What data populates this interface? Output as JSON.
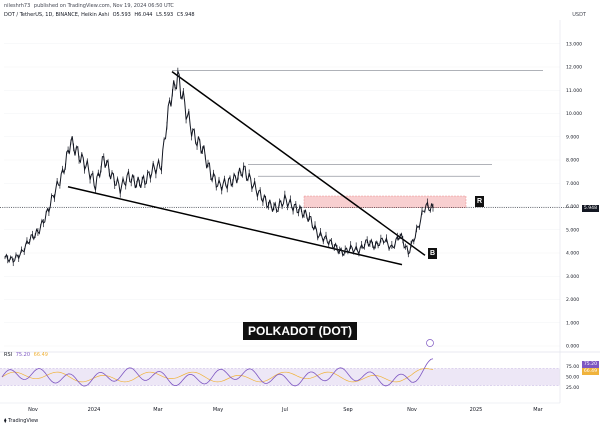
{
  "header": {
    "author": "nileshrh73",
    "published": "published on TradingView.com, Nov 19, 2024 06:50 UTC"
  },
  "symbol": {
    "name": "DOT / TetherUS, 1D, BINANCE, Heikin Ashi",
    "o": "O5.593",
    "h": "H6.044",
    "l": "L5.593",
    "c": "C5.948"
  },
  "currency": "USDT",
  "title": "POLKADOT (DOT)",
  "markers": {
    "resistance": "R",
    "breakout": "B"
  },
  "price_tag": "5.948",
  "rsi": {
    "label": "RSI",
    "value": "75.20",
    "ma_value": "66.49",
    "tag_value": "75.20",
    "tag_ma": "66.49"
  },
  "footer": "TradingView",
  "colors": {
    "candle": "#131722",
    "zone": "#f8cfd0",
    "zone_border": "#e57373",
    "rsi_band": "#ede7f6",
    "rsi_line": "#7e57c2",
    "rsi_ma": "#f0b33c"
  },
  "chart_data": {
    "type": "line",
    "title": "POLKADOT (DOT)",
    "y_axis": {
      "ticks": [
        "13.000",
        "12.000",
        "11.000",
        "10.000",
        "9.000",
        "8.000",
        "7.000",
        "6.000",
        "5.000",
        "4.000",
        "3.000",
        "2.000",
        "1.000",
        "0.000"
      ],
      "ylim": [
        0,
        13.2
      ]
    },
    "x_axis": {
      "ticks": [
        "Nov",
        "2024",
        "Mar",
        "May",
        "Jul",
        "Sep",
        "Nov",
        "2025",
        "Mar"
      ]
    },
    "price_series": [
      3.8,
      3.7,
      4.0,
      4.6,
      4.9,
      5.6,
      6.6,
      7.4,
      8.8,
      8.2,
      7.7,
      6.9,
      8.1,
      7.3,
      6.8,
      7.3,
      7.0,
      7.1,
      7.6,
      7.8,
      10.5,
      11.6,
      10.1,
      9.0,
      8.5,
      7.4,
      6.9,
      7.0,
      7.2,
      7.6,
      7.0,
      6.5,
      6.1,
      5.9,
      6.3,
      6.0,
      5.8,
      5.5,
      4.8,
      4.6,
      4.3,
      4.0,
      4.2,
      4.1,
      4.5,
      4.3,
      4.6,
      4.2,
      4.8,
      4.0,
      4.9,
      6.0,
      5.95
    ],
    "resistance_zone": [
      5.95,
      6.45
    ],
    "current_price": 5.948,
    "horizontal_levels": [
      11.85,
      7.8,
      7.3
    ],
    "wedge_upper": [
      [
        11.8,
        3.9
      ]
    ],
    "wedge_lower": [
      [
        6.85,
        3.5
      ]
    ],
    "rsi": {
      "value": 75.2,
      "ma": 66.49,
      "ticks": [
        "75.00",
        "50.00",
        "25.00"
      ],
      "band": [
        30,
        70
      ]
    }
  }
}
